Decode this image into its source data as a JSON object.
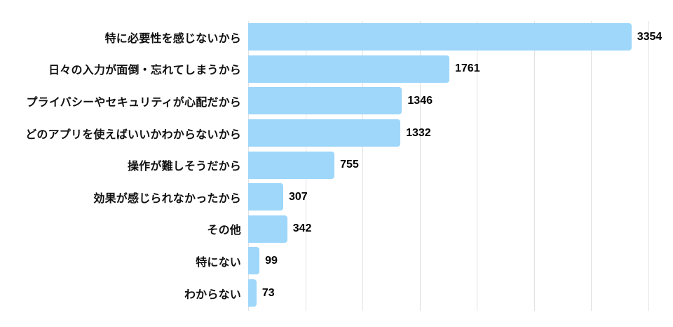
{
  "chart_data": {
    "type": "bar",
    "orientation": "horizontal",
    "title": "",
    "xlabel": "",
    "ylabel": "",
    "categories": [
      "特に必要性を感じないから",
      "日々の入力が面倒・忘れてしまうから",
      "プライバシーやセキュリティが心配だから",
      "どのアプリを使えばいいかわからないから",
      "操作が難しそうだから",
      "効果が感じられなかったから",
      "その他",
      "特にない",
      "わからない"
    ],
    "values": [
      3354,
      1761,
      1346,
      1332,
      755,
      307,
      342,
      99,
      73
    ],
    "xlim": [
      0,
      3500
    ],
    "gridline_interval": 500,
    "grid": true,
    "legend": false,
    "value_labels_shown": true,
    "colors": {
      "bar": "#9ED7FA",
      "gridline": "#E2E2E2",
      "category_label": "#111111",
      "value_label": "#000000",
      "background": "#FFFFFF"
    }
  }
}
